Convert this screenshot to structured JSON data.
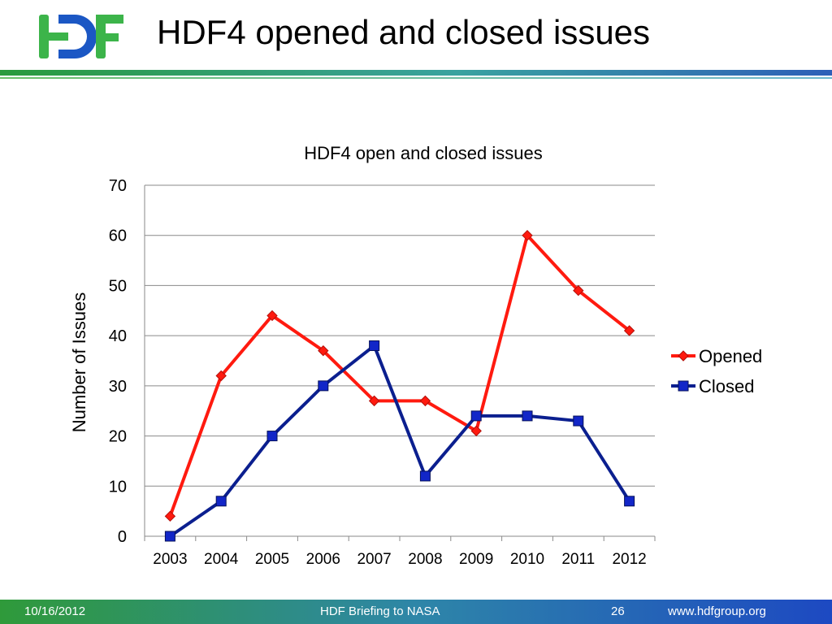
{
  "slide": {
    "title": "HDF4 opened and closed issues",
    "logo_text": "HDF"
  },
  "footer": {
    "date": "10/16/2012",
    "center": "HDF Briefing to NASA",
    "page": "26",
    "url": "www.hdfgroup.org"
  },
  "colors": {
    "opened": "#ff1a0f",
    "closed": "#0b1f8f",
    "closed_marker": "#1226c8",
    "logo_green": "#3cb44a",
    "logo_blue": "#1b57c4"
  },
  "chart_data": {
    "type": "line",
    "title": "HDF4 open and closed issues",
    "xlabel": "",
    "ylabel": "Number of Issues",
    "categories": [
      "2003",
      "2004",
      "2005",
      "2006",
      "2007",
      "2008",
      "2009",
      "2010",
      "2011",
      "2012"
    ],
    "ylim": [
      0,
      70
    ],
    "yticks": [
      0,
      10,
      20,
      30,
      40,
      50,
      60,
      70
    ],
    "grid": true,
    "legend": "right",
    "series": [
      {
        "name": "Opened",
        "marker": "diamond",
        "values": [
          4,
          32,
          44,
          37,
          27,
          27,
          21,
          60,
          49,
          41
        ]
      },
      {
        "name": "Closed",
        "marker": "square",
        "values": [
          0,
          7,
          20,
          30,
          38,
          12,
          24,
          24,
          23,
          7
        ]
      }
    ]
  }
}
